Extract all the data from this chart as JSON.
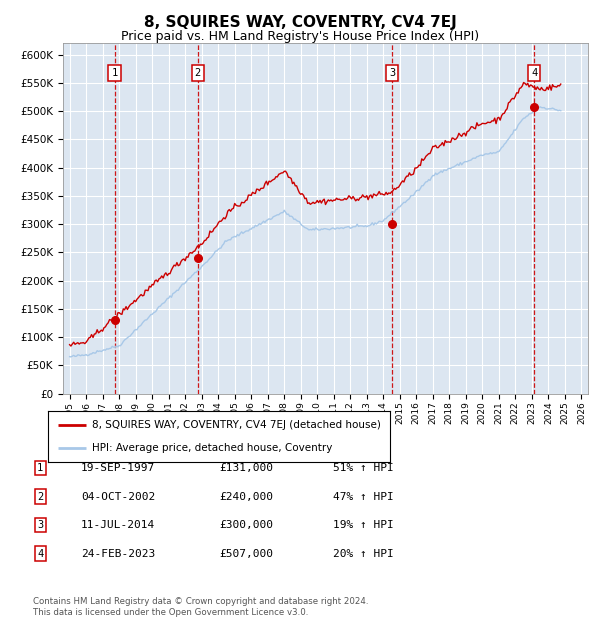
{
  "title": "8, SQUIRES WAY, COVENTRY, CV4 7EJ",
  "subtitle": "Price paid vs. HM Land Registry's House Price Index (HPI)",
  "ylim": [
    0,
    620000
  ],
  "yticks": [
    0,
    50000,
    100000,
    150000,
    200000,
    250000,
    300000,
    350000,
    400000,
    450000,
    500000,
    550000,
    600000
  ],
  "xlim_start": 1994.6,
  "xlim_end": 2026.4,
  "plot_bg": "#dce6f1",
  "grid_color": "#ffffff",
  "sale_dates": [
    1997.72,
    2002.75,
    2014.53,
    2023.15
  ],
  "sale_prices": [
    131000,
    240000,
    300000,
    507000
  ],
  "sale_labels": [
    "1",
    "2",
    "3",
    "4"
  ],
  "hpi_line_color": "#a8c8e8",
  "sale_line_color": "#cc0000",
  "sale_dot_color": "#cc0000",
  "vline_color": "#cc0000",
  "legend_entries": [
    "8, SQUIRES WAY, COVENTRY, CV4 7EJ (detached house)",
    "HPI: Average price, detached house, Coventry"
  ],
  "table_data": [
    [
      "1",
      "19-SEP-1997",
      "£131,000",
      "51% ↑ HPI"
    ],
    [
      "2",
      "04-OCT-2002",
      "£240,000",
      "47% ↑ HPI"
    ],
    [
      "3",
      "11-JUL-2014",
      "£300,000",
      "19% ↑ HPI"
    ],
    [
      "4",
      "24-FEB-2023",
      "£507,000",
      "20% ↑ HPI"
    ]
  ],
  "footnote": "Contains HM Land Registry data © Crown copyright and database right 2024.\nThis data is licensed under the Open Government Licence v3.0.",
  "title_fontsize": 11,
  "subtitle_fontsize": 9,
  "hpi_years": [
    1995.0,
    1995.08,
    1995.17,
    1995.25,
    1995.33,
    1995.42,
    1995.5,
    1995.58,
    1995.67,
    1995.75,
    1995.83,
    1995.92,
    1996.0,
    1996.08,
    1996.17,
    1996.25,
    1996.33,
    1996.42,
    1996.5,
    1996.58,
    1996.67,
    1996.75,
    1996.83,
    1996.92,
    1997.0,
    1997.08,
    1997.17,
    1997.25,
    1997.33,
    1997.42,
    1997.5,
    1997.58,
    1997.67,
    1997.75,
    1997.83,
    1997.92,
    1998.0,
    1998.08,
    1998.17,
    1998.25,
    1998.33,
    1998.42,
    1998.5,
    1998.58,
    1998.67,
    1998.75,
    1998.83,
    1998.92,
    1999.0,
    1999.08,
    1999.17,
    1999.25,
    1999.33,
    1999.42,
    1999.5,
    1999.58,
    1999.67,
    1999.75,
    1999.83,
    1999.92,
    2000.0,
    2000.08,
    2000.17,
    2000.25,
    2000.33,
    2000.42,
    2000.5,
    2000.58,
    2000.67,
    2000.75,
    2000.83,
    2000.92,
    2001.0,
    2001.08,
    2001.17,
    2001.25,
    2001.33,
    2001.42,
    2001.5,
    2001.58,
    2001.67,
    2001.75,
    2001.83,
    2001.92,
    2002.0,
    2002.08,
    2002.17,
    2002.25,
    2002.33,
    2002.42,
    2002.5,
    2002.58,
    2002.67,
    2002.75,
    2002.83,
    2002.92,
    2003.0,
    2003.08,
    2003.17,
    2003.25,
    2003.33,
    2003.42,
    2003.5,
    2003.58,
    2003.67,
    2003.75,
    2003.83,
    2003.92,
    2004.0,
    2004.08,
    2004.17,
    2004.25,
    2004.33,
    2004.42,
    2004.5,
    2004.58,
    2004.67,
    2004.75,
    2004.83,
    2004.92,
    2005.0,
    2005.08,
    2005.17,
    2005.25,
    2005.33,
    2005.42,
    2005.5,
    2005.58,
    2005.67,
    2005.75,
    2005.83,
    2005.92,
    2006.0,
    2006.08,
    2006.17,
    2006.25,
    2006.33,
    2006.42,
    2006.5,
    2006.58,
    2006.67,
    2006.75,
    2006.83,
    2006.92,
    2007.0,
    2007.08,
    2007.17,
    2007.25,
    2007.33,
    2007.42,
    2007.5,
    2007.58,
    2007.67,
    2007.75,
    2007.83,
    2007.92,
    2008.0,
    2008.08,
    2008.17,
    2008.25,
    2008.33,
    2008.42,
    2008.5,
    2008.58,
    2008.67,
    2008.75,
    2008.83,
    2008.92,
    2009.0,
    2009.08,
    2009.17,
    2009.25,
    2009.33,
    2009.42,
    2009.5,
    2009.58,
    2009.67,
    2009.75,
    2009.83,
    2009.92,
    2010.0,
    2010.08,
    2010.17,
    2010.25,
    2010.33,
    2010.42,
    2010.5,
    2010.58,
    2010.67,
    2010.75,
    2010.83,
    2010.92,
    2011.0,
    2011.08,
    2011.17,
    2011.25,
    2011.33,
    2011.42,
    2011.5,
    2011.58,
    2011.67,
    2011.75,
    2011.83,
    2011.92,
    2012.0,
    2012.08,
    2012.17,
    2012.25,
    2012.33,
    2012.42,
    2012.5,
    2012.58,
    2012.67,
    2012.75,
    2012.83,
    2012.92,
    2013.0,
    2013.08,
    2013.17,
    2013.25,
    2013.33,
    2013.42,
    2013.5,
    2013.58,
    2013.67,
    2013.75,
    2013.83,
    2013.92,
    2014.0,
    2014.08,
    2014.17,
    2014.25,
    2014.33,
    2014.42,
    2014.5,
    2014.58,
    2014.67,
    2014.75,
    2014.83,
    2014.92,
    2015.0,
    2015.08,
    2015.17,
    2015.25,
    2015.33,
    2015.42,
    2015.5,
    2015.58,
    2015.67,
    2015.75,
    2015.83,
    2015.92,
    2016.0,
    2016.08,
    2016.17,
    2016.25,
    2016.33,
    2016.42,
    2016.5,
    2016.58,
    2016.67,
    2016.75,
    2016.83,
    2016.92,
    2017.0,
    2017.08,
    2017.17,
    2017.25,
    2017.33,
    2017.42,
    2017.5,
    2017.58,
    2017.67,
    2017.75,
    2017.83,
    2017.92,
    2018.0,
    2018.08,
    2018.17,
    2018.25,
    2018.33,
    2018.42,
    2018.5,
    2018.58,
    2018.67,
    2018.75,
    2018.83,
    2018.92,
    2019.0,
    2019.08,
    2019.17,
    2019.25,
    2019.33,
    2019.42,
    2019.5,
    2019.58,
    2019.67,
    2019.75,
    2019.83,
    2019.92,
    2020.0,
    2020.08,
    2020.17,
    2020.25,
    2020.33,
    2020.42,
    2020.5,
    2020.58,
    2020.67,
    2020.75,
    2020.83,
    2020.92,
    2021.0,
    2021.08,
    2021.17,
    2021.25,
    2021.33,
    2021.42,
    2021.5,
    2021.58,
    2021.67,
    2021.75,
    2021.83,
    2021.92,
    2022.0,
    2022.08,
    2022.17,
    2022.25,
    2022.33,
    2022.42,
    2022.5,
    2022.58,
    2022.67,
    2022.75,
    2022.83,
    2022.92,
    2023.0,
    2023.08,
    2023.17,
    2023.25,
    2023.33,
    2023.42,
    2023.5,
    2023.58,
    2023.67,
    2023.75,
    2023.83,
    2023.92,
    2024.0,
    2024.08,
    2024.17,
    2024.25,
    2024.33,
    2024.42,
    2024.5,
    2024.58,
    2024.67,
    2024.75
  ]
}
